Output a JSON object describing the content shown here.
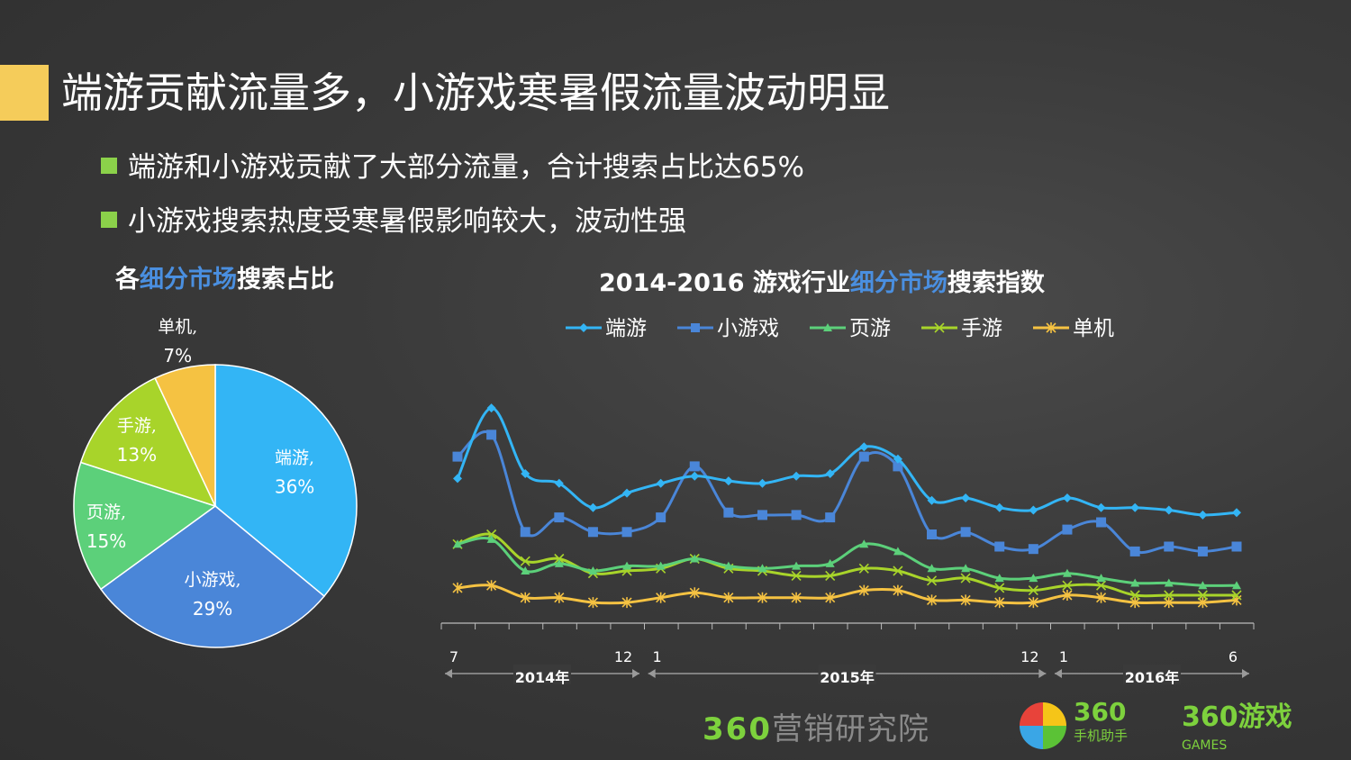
{
  "title": "端游贡献流量多，小游戏寒暑假流量波动明显",
  "bullets": [
    "端游和小游戏贡献了大部分流量，合计搜索占比达65%",
    "小游戏搜索热度受寒暑假影响较大，波动性强"
  ],
  "pie_title": {
    "pre": "各",
    "hl": "细分市场",
    "post": "搜索占比"
  },
  "line_title": {
    "pre": "2014-2016 游戏行业",
    "hl": "细分市场",
    "post": "搜索指数"
  },
  "colors": {
    "accent_bar": "#f5cc5a",
    "bullet": "#8bd14a",
    "highlight": "#4a8fe0"
  },
  "chart_data": [
    {
      "type": "pie",
      "categories": [
        "端游",
        "小游戏",
        "页游",
        "手游",
        "单机"
      ],
      "values": [
        36,
        29,
        15,
        13,
        7
      ],
      "labels": [
        [
          "端游,",
          "36%"
        ],
        [
          "小游戏,",
          "29%"
        ],
        [
          "页游,",
          "15%"
        ],
        [
          "手游,",
          "13%"
        ],
        [
          "单机,",
          "7%"
        ]
      ],
      "colors": [
        "#33b5f5",
        "#4a86d8",
        "#5cd07a",
        "#a8d42a",
        "#f5c242"
      ]
    },
    {
      "type": "line",
      "x_count": 24,
      "x_tick_labels": [
        {
          "i": 0,
          "t": "7"
        },
        {
          "i": 5,
          "t": "12"
        },
        {
          "i": 6,
          "t": "1"
        },
        {
          "i": 17,
          "t": "12"
        },
        {
          "i": 18,
          "t": "1"
        },
        {
          "i": 23,
          "t": "6"
        }
      ],
      "year_groups": [
        {
          "from": 0,
          "to": 5,
          "label": "2014年"
        },
        {
          "from": 6,
          "to": 17,
          "label": "2015年"
        },
        {
          "from": 18,
          "to": 23,
          "label": "2016年"
        }
      ],
      "ylim": [
        0,
        100
      ],
      "legend": "top",
      "series": [
        {
          "name": "端游",
          "color": "#33b5f5",
          "marker": "diamond",
          "values": [
            58,
            87,
            60,
            56,
            46,
            52,
            56,
            59,
            57,
            56,
            59,
            60,
            71,
            66,
            49,
            50,
            46,
            45,
            50,
            46,
            46,
            45,
            43,
            44
          ]
        },
        {
          "name": "小游戏",
          "color": "#4a86d8",
          "marker": "square",
          "values": [
            67,
            76,
            36,
            42,
            36,
            36,
            42,
            63,
            44,
            43,
            43,
            42,
            67,
            63,
            35,
            36,
            30,
            29,
            37,
            40,
            28,
            30,
            28,
            30
          ]
        },
        {
          "name": "页游",
          "color": "#5cd07a",
          "marker": "triangle",
          "values": [
            31,
            33,
            20,
            23,
            20,
            22,
            22,
            25,
            22,
            21,
            22,
            23,
            31,
            28,
            21,
            21,
            17,
            17,
            19,
            17,
            15,
            15,
            14,
            14
          ]
        },
        {
          "name": "手游",
          "color": "#a8d42a",
          "marker": "x",
          "values": [
            31,
            35,
            24,
            25,
            19,
            20,
            21,
            25,
            21,
            20,
            18,
            18,
            21,
            20,
            16,
            17,
            13,
            12,
            14,
            14,
            10,
            10,
            10,
            10
          ]
        },
        {
          "name": "单机",
          "color": "#f5c242",
          "marker": "star",
          "values": [
            13,
            14,
            9,
            9,
            7,
            7,
            9,
            11,
            9,
            9,
            9,
            9,
            12,
            12,
            8,
            8,
            7,
            7,
            10,
            9,
            7,
            7,
            7,
            8
          ]
        }
      ]
    }
  ],
  "brand": {
    "yanjiuyuan_num": "360",
    "yanjiuyuan_text": "营销研究院",
    "zhushou_num": "360",
    "zhushou_text": "手机助手",
    "games_num": "360",
    "games_text": "GAMES",
    "games_cn": "游戏"
  }
}
